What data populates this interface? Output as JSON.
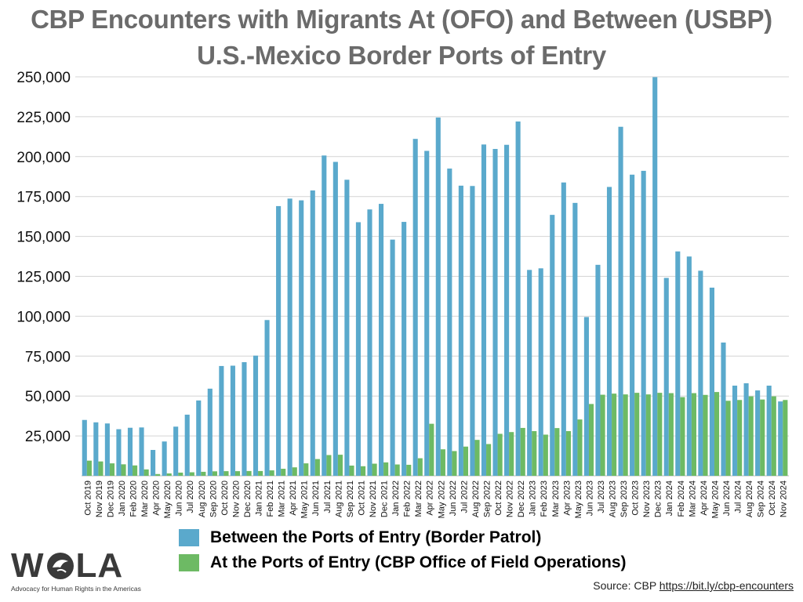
{
  "title_line1": "CBP Encounters with Migrants At (OFO) and Between (USBP)",
  "title_line2": "U.S.-Mexico Border Ports of Entry",
  "legend": {
    "usbp": "Between the Ports of Entry (Border Patrol)",
    "ofo": "At the Ports of Entry (CBP Office of Field Operations)"
  },
  "colors": {
    "usbp": "#5aa9cc",
    "ofo": "#6dba64",
    "grid": "#d4d4d4",
    "title": "#6b6b6b"
  },
  "logo": {
    "text": "WOLA",
    "tagline": "Advocacy for Human Rights in the Americas"
  },
  "source": {
    "label": "Source: CBP",
    "link": "https://bit.ly/cbp-encounters"
  },
  "chart_data": {
    "type": "bar",
    "ylim": [
      0,
      250000
    ],
    "yticks": [
      "250,000",
      "225,000",
      "200,000",
      "175,000",
      "150,000",
      "125,000",
      "100,000",
      "75,000",
      "50,000",
      "25,000"
    ],
    "ytick_values": [
      250000,
      225000,
      200000,
      175000,
      150000,
      125000,
      100000,
      75000,
      50000,
      25000
    ],
    "categories": [
      "Oct 2019",
      "Nov 2019",
      "Dec 2019",
      "Jan 2020",
      "Feb 2020",
      "Mar 2020",
      "Apr 2020",
      "May 2020",
      "Jun 2020",
      "Jul 2020",
      "Aug 2020",
      "Sep 2020",
      "Oct 2020",
      "Nov 2020",
      "Dec 2020",
      "Jan 2021",
      "Feb 2021",
      "Mar 2021",
      "Apr 2021",
      "May 2021",
      "Jun 2021",
      "Jul 2021",
      "Aug 2021",
      "Sep 2021",
      "Oct 2021",
      "Nov 2021",
      "Dec 2021",
      "Jan 2022",
      "Feb 2022",
      "Mar 2022",
      "Apr 2022",
      "May 2022",
      "Jun 2022",
      "Jul 2022",
      "Aug 2022",
      "Sep 2022",
      "Oct 2022",
      "Nov 2022",
      "Dec 2022",
      "Jan 2023",
      "Feb 2023",
      "Mar 2023",
      "Apr 2023",
      "May 2023",
      "Jun 2023",
      "Jul 2023",
      "Aug 2023",
      "Sep 2023",
      "Oct 2023",
      "Nov 2023",
      "Dec 2023",
      "Jan 2024",
      "Feb 2024",
      "Mar 2024",
      "Apr 2024",
      "May 2024",
      "Jun 2024",
      "Jul 2024",
      "Aug 2024",
      "Sep 2024",
      "Oct 2024",
      "Nov 2024"
    ],
    "series": [
      {
        "name": "Between the Ports of Entry (Border Patrol)",
        "values": [
          35000,
          33500,
          32800,
          29200,
          30100,
          30300,
          16200,
          21500,
          30800,
          38300,
          47200,
          54600,
          68800,
          69000,
          71200,
          75300,
          97600,
          169000,
          173700,
          172600,
          178800,
          200700,
          196700,
          185500,
          158900,
          166900,
          170400,
          148000,
          159100,
          211100,
          203600,
          224500,
          192500,
          181800,
          181600,
          207600,
          204800,
          207400,
          222000,
          129000,
          130000,
          163500,
          183800,
          171000,
          99500,
          132200,
          181000,
          218700,
          188700,
          191100,
          249800,
          124000,
          140600,
          137400,
          128500,
          117900,
          83500,
          56500,
          58000,
          53500,
          56500,
          46600
        ]
      },
      {
        "name": "At the Ports of Entry (CBP Office of Field Operations)",
        "values": [
          9500,
          9000,
          7800,
          7200,
          6500,
          4000,
          1100,
          1500,
          2000,
          2200,
          2500,
          2800,
          2900,
          2900,
          3000,
          3000,
          3400,
          4400,
          5300,
          7800,
          10500,
          13000,
          13200,
          6400,
          6000,
          7600,
          8400,
          7100,
          6900,
          11000,
          32600,
          16600,
          15500,
          18300,
          22500,
          19900,
          26300,
          27400,
          30000,
          28000,
          25800,
          29900,
          28000,
          35300,
          45000,
          50800,
          51500,
          51000,
          52000,
          51000,
          52000,
          51800,
          49300,
          51800,
          50700,
          52500,
          47000,
          47500,
          49800,
          47800,
          49800,
          47500
        ]
      }
    ]
  }
}
